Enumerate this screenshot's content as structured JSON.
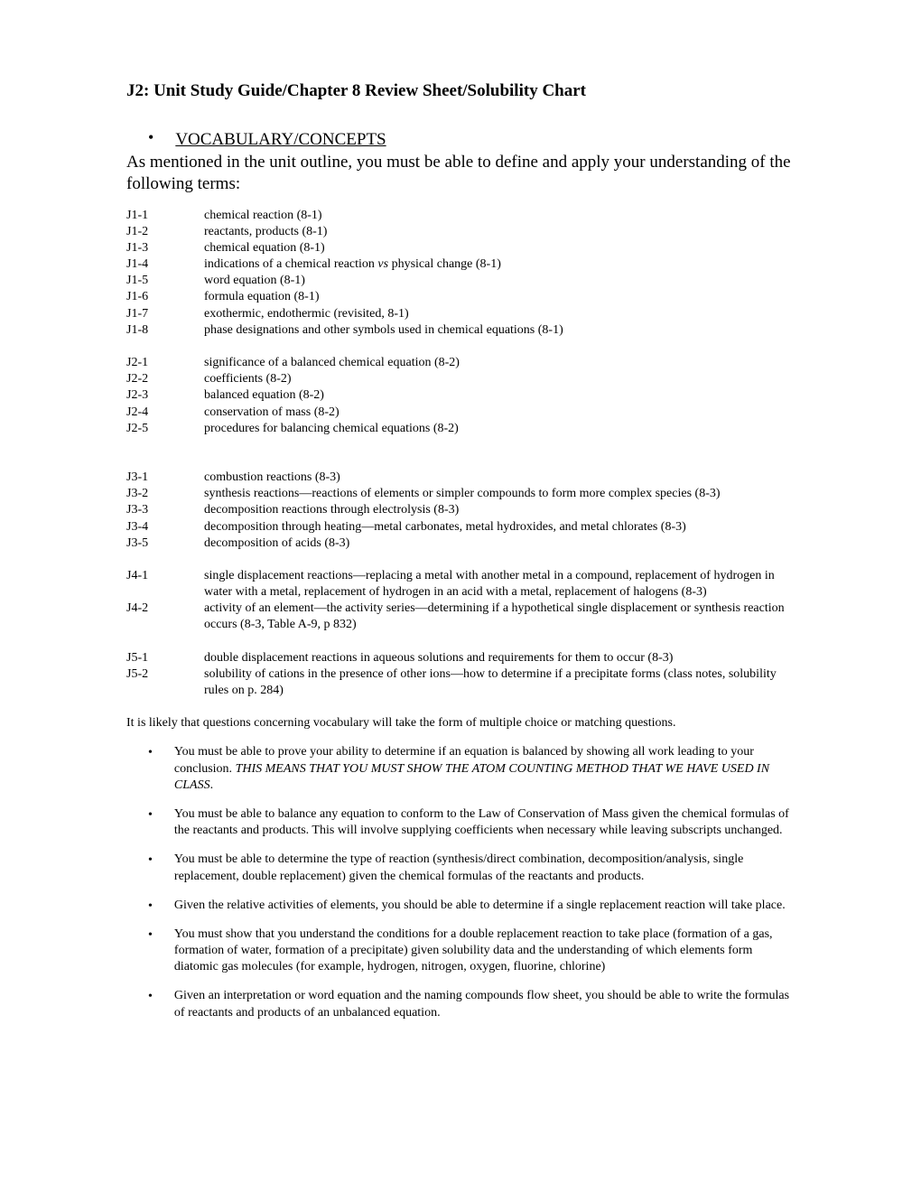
{
  "title": "J2: Unit Study Guide/Chapter 8 Review Sheet/Solubility Chart",
  "sectionHeader": "VOCABULARY/CONCEPTS",
  "introText": "As mentioned in the unit outline, you must be able to define and apply your understanding of the following terms:",
  "vocabGroups": [
    [
      {
        "code": "J1-1",
        "desc": "chemical reaction (8-1)"
      },
      {
        "code": "J1-2",
        "desc": "reactants, products (8-1)"
      },
      {
        "code": "J1-3",
        "desc": "chemical equation (8-1)"
      },
      {
        "code": "J1-4",
        "desc": "indications of a chemical reaction <span class=\"italic\">vs</span> physical change (8-1)"
      },
      {
        "code": "J1-5",
        "desc": "word equation (8-1)"
      },
      {
        "code": "J1-6",
        "desc": "formula equation (8-1)"
      },
      {
        "code": "J1-7",
        "desc": "exothermic, endothermic (revisited, 8-1)"
      },
      {
        "code": "J1-8",
        "desc": "phase designations and other symbols used in chemical equations (8-1)"
      }
    ],
    [
      {
        "code": "J2-1",
        "desc": "significance of a balanced chemical equation (8-2)"
      },
      {
        "code": "J2-2",
        "desc": "coefficients (8-2)"
      },
      {
        "code": "J2-3",
        "desc": "balanced equation (8-2)"
      },
      {
        "code": "J2-4",
        "desc": "conservation of mass (8-2)"
      },
      {
        "code": "J2-5",
        "desc": "procedures for balancing chemical equations (8-2)"
      }
    ],
    [
      {
        "code": "J3-1",
        "desc": "combustion reactions (8-3)"
      },
      {
        "code": "J3-2",
        "desc": "synthesis reactions—reactions of elements or simpler compounds to form more complex species (8-3)"
      },
      {
        "code": "J3-3",
        "desc": "decomposition reactions through electrolysis (8-3)"
      },
      {
        "code": "J3-4",
        "desc": "decomposition through heating—metal carbonates, metal hydroxides, and metal chlorates (8-3)"
      },
      {
        "code": "J3-5",
        "desc": "decomposition of acids (8-3)"
      }
    ],
    [
      {
        "code": "J4-1",
        "desc": "single displacement reactions—replacing a metal with another metal in a compound, replacement of hydrogen in water with a metal, replacement of hydrogen in an acid with a metal, replacement of halogens (8-3)"
      },
      {
        "code": "J4-2",
        "desc": "activity of an element—the activity series—determining if a hypothetical single displacement or synthesis reaction occurs (8-3, Table A-9, p 832)"
      }
    ],
    [
      {
        "code": "J5-1",
        "desc": "double displacement reactions in aqueous solutions and requirements for them to occur (8-3)"
      },
      {
        "code": "J5-2",
        "desc": "solubility of cations in the presence of other ions—how to determine if a precipitate forms (class notes, solubility rules on p. 284)"
      }
    ]
  ],
  "noteText": "It is likely that questions concerning vocabulary will take the form of multiple choice or matching questions.",
  "skills": [
    "You must be able to prove your ability to determine if an equation is balanced by showing all work leading to your conclusion. <span class=\"italic\">THIS MEANS THAT YOU MUST SHOW THE ATOM COUNTING METHOD THAT WE HAVE USED IN CLASS</span>.",
    "You must be able to balance any equation to conform to the Law of Conservation of Mass given the chemical formulas of the reactants and products. This will involve supplying coefficients when necessary while leaving subscripts unchanged.",
    "You must be able to determine the type of reaction (synthesis/direct combination, decomposition/analysis, single replacement, double replacement) given the chemical formulas of the reactants and products.",
    "Given the relative activities of elements, you should be able to determine if a single replacement reaction will take place.",
    "You must show that you understand the conditions for a double replacement reaction to take place (formation of a gas, formation of water, formation of a precipitate) given solubility data and the understanding of which elements form diatomic gas molecules (for example, hydrogen, nitrogen, oxygen, fluorine, chlorine)",
    "Given an interpretation or word equation and the naming compounds flow sheet, you should be able to write the formulas of reactants and products of an unbalanced equation."
  ]
}
